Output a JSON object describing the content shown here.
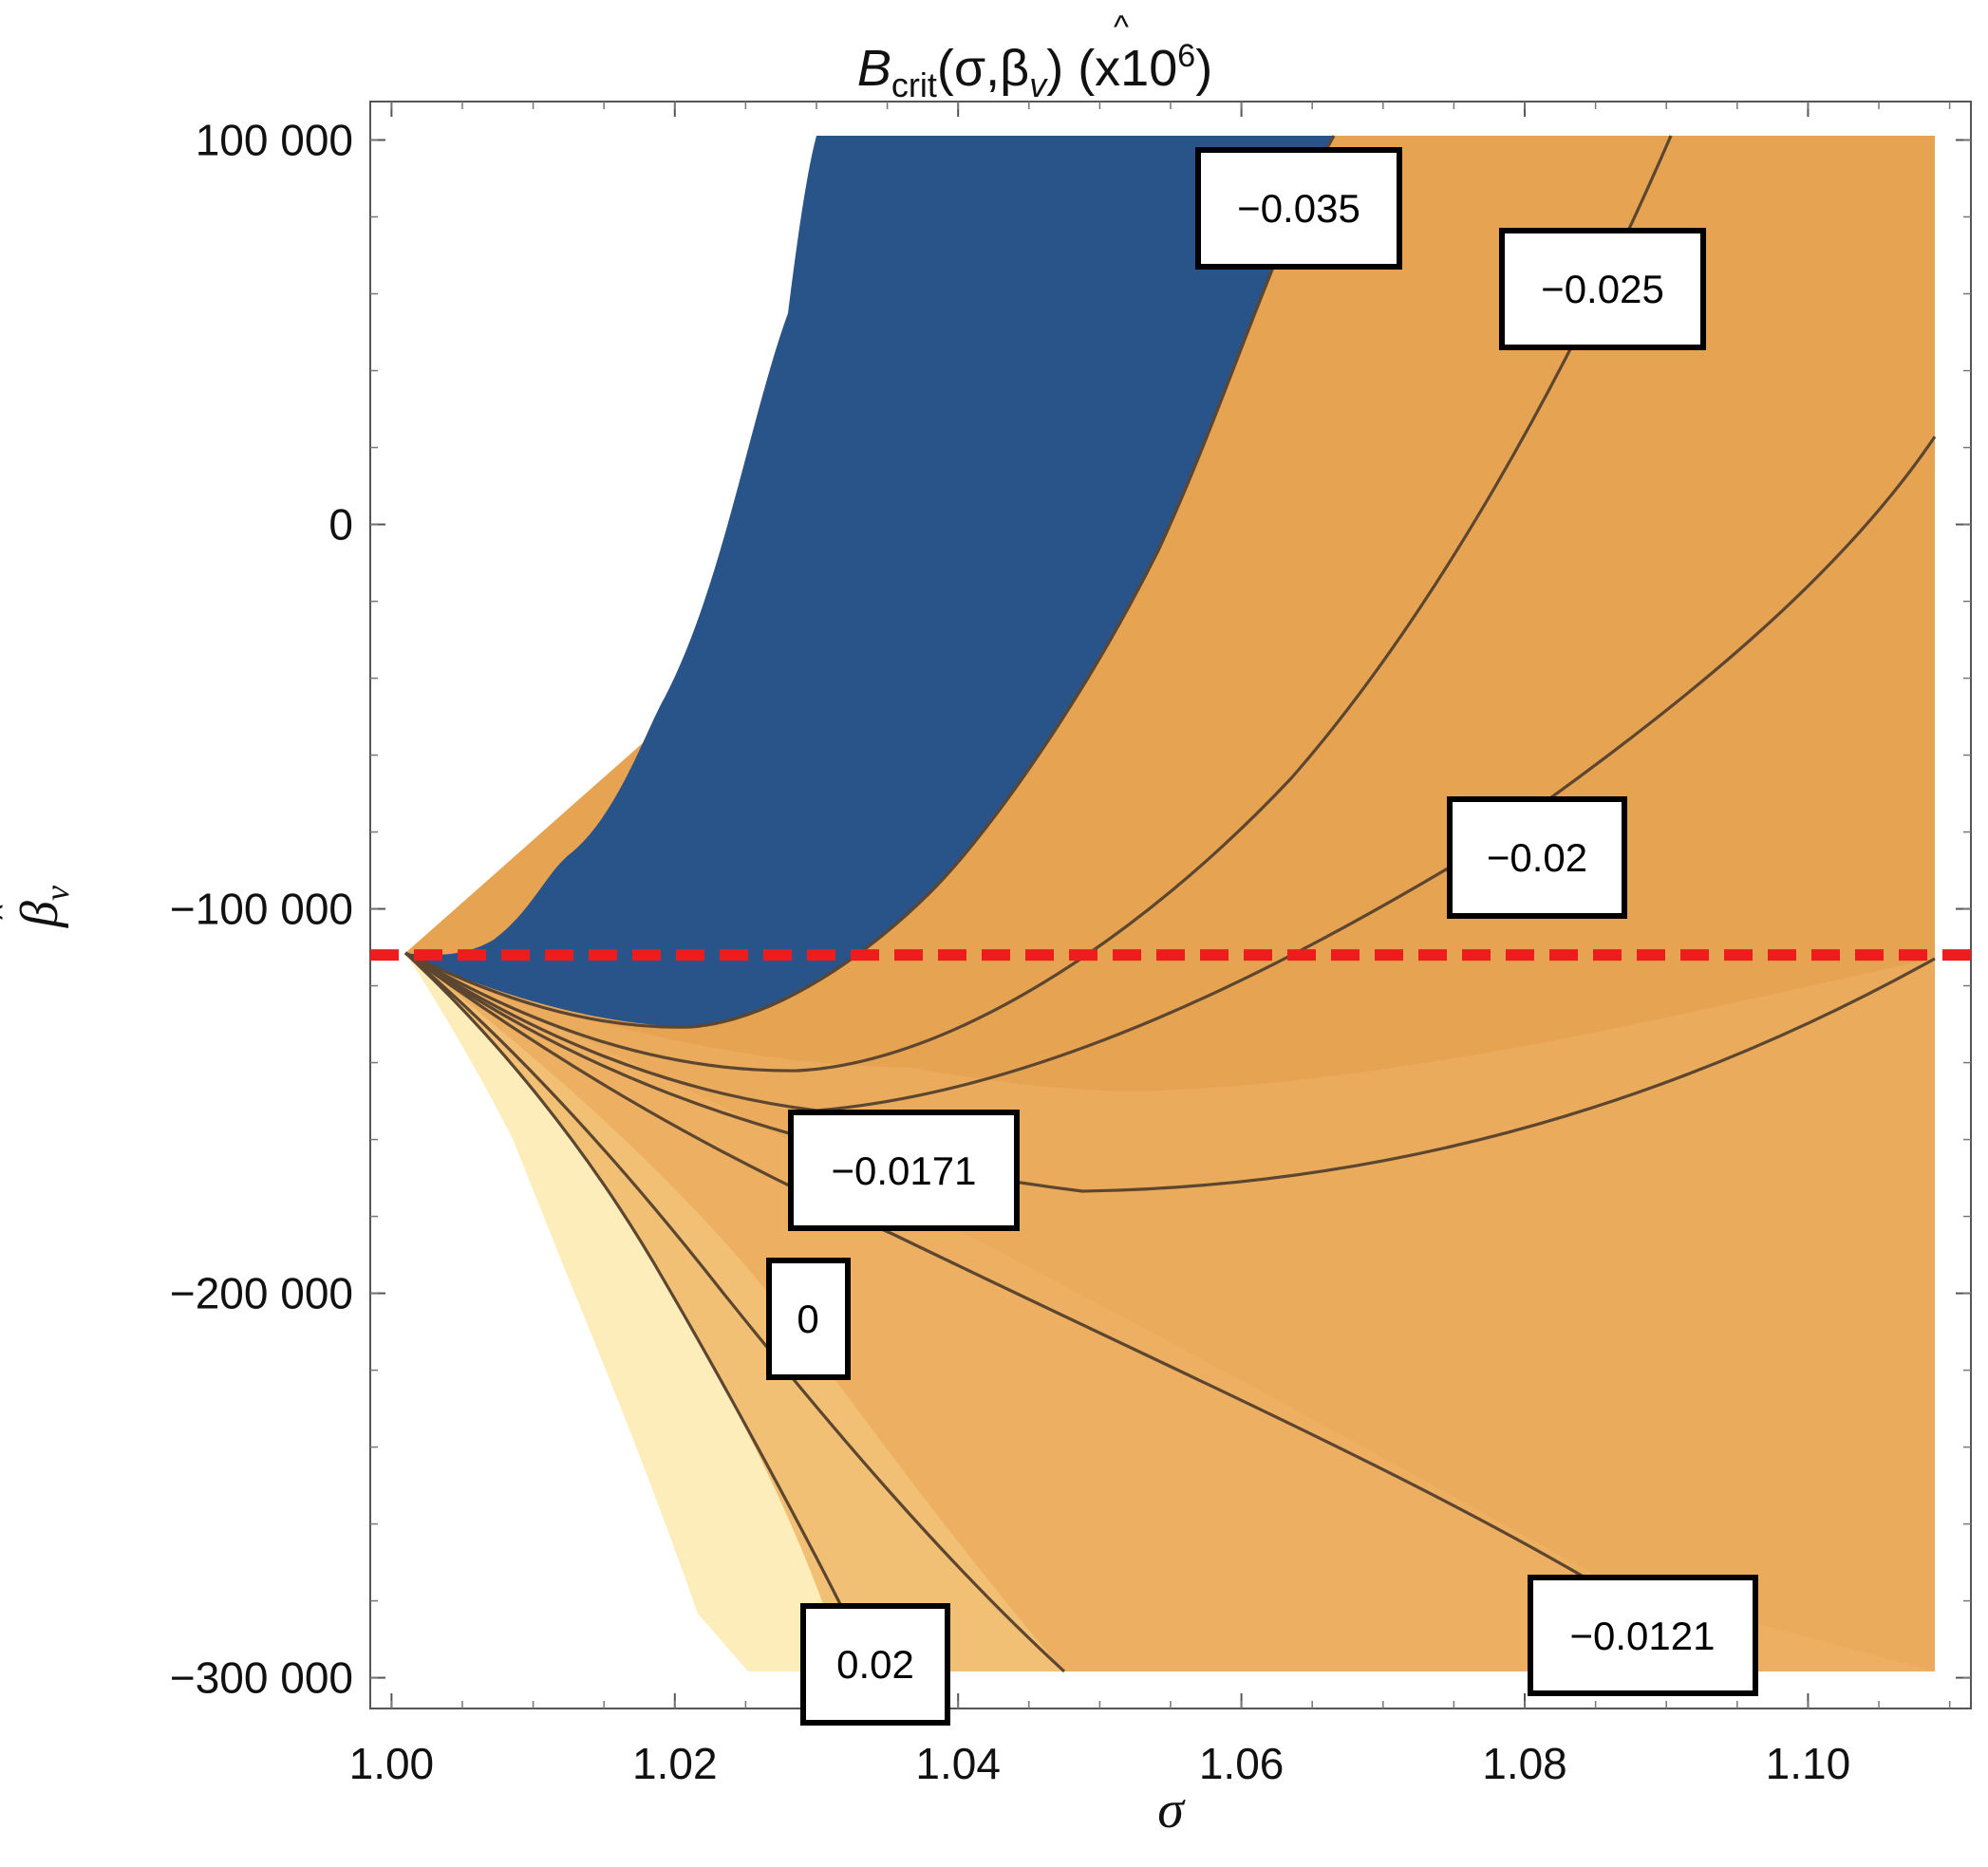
{
  "chart_data": {
    "type": "contour",
    "title": {
      "main": "B",
      "sub": "crit",
      "args": "(σ,β",
      "args_sub": "v",
      "close": ") (x10",
      "exp": "6",
      "end": ")"
    },
    "xlabel": "σ",
    "ylabel": {
      "main": "β",
      "sub": "v"
    },
    "xlim": [
      0.9985,
      1.1115
    ],
    "ylim": [
      -308000,
      110000
    ],
    "x_ticks": [
      1.0,
      1.02,
      1.04,
      1.06,
      1.08,
      1.1
    ],
    "x_tick_labels": [
      "1.00",
      "1.02",
      "1.04",
      "1.06",
      "1.08",
      "1.10"
    ],
    "y_ticks": [
      100000,
      0,
      -100000,
      -200000,
      -300000
    ],
    "y_tick_labels": [
      "100 000",
      "0",
      "−100 000",
      "−200 000",
      "−300 000"
    ],
    "reference_line": {
      "y": -112000,
      "style": "dashed",
      "color": "#ee1c1c"
    },
    "colors": {
      "deep_blue": "#28548a",
      "band_1": "#e6a352",
      "band_2": "#eaab5c",
      "band_3": "#edb062",
      "band_4": "#f2c074",
      "band_light": "#fcedbb",
      "contour_line": "#5c4630"
    },
    "contour_labels": [
      {
        "text": "−0.035"
      },
      {
        "text": "−0.025"
      },
      {
        "text": "−0.02"
      },
      {
        "text": "−0.0171"
      },
      {
        "text": "0"
      },
      {
        "text": "0.02"
      },
      {
        "text": "−0.0121"
      }
    ]
  }
}
